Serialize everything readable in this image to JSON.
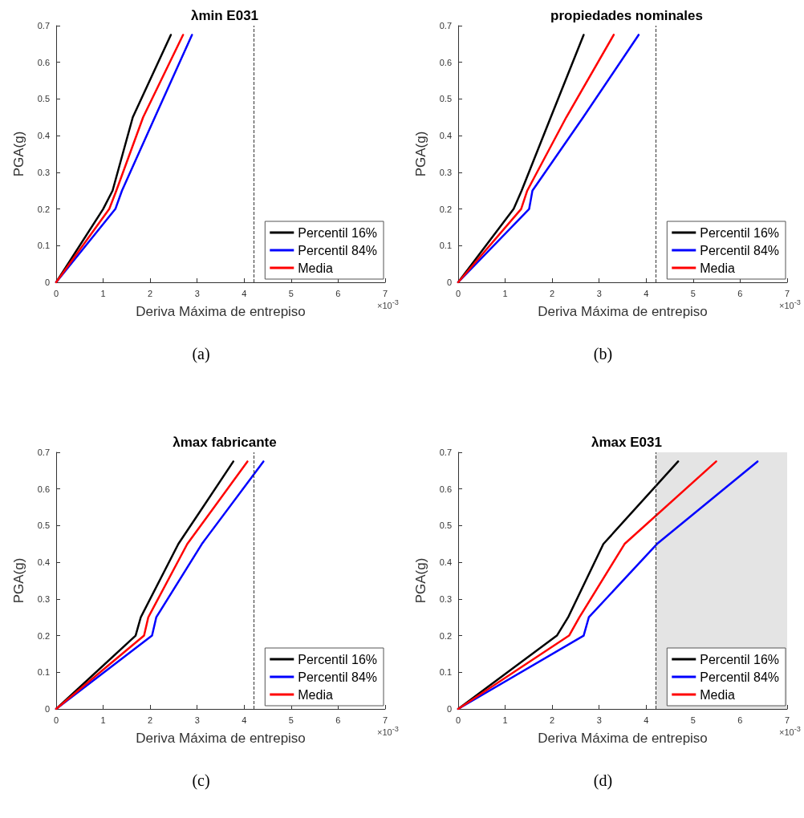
{
  "chart_data": [
    {
      "type": "line",
      "title": "λmin E031",
      "xlabel": "Deriva Máxima de entrepiso",
      "ylabel": "PGA(g)",
      "annotations": [
        "×10$^{-3}$",
        "(a)"
      ],
      "xlim": [
        0,
        7
      ],
      "xticks": [
        0,
        1,
        2,
        3,
        4,
        5,
        6,
        7
      ],
      "ylim": [
        0,
        0.7
      ],
      "yticks": [
        0,
        0.1,
        0.2,
        0.3,
        0.4,
        0.5,
        0.6,
        0.7
      ],
      "grid": false,
      "legend": "bottom right",
      "marker": "none",
      "line_style": "solid",
      "ref_lines": [
        {
          "axis": "x",
          "value": 4.2,
          "color": "#333333",
          "line_style": "dashed"
        }
      ],
      "series": [
        {
          "name": "Percentil 16%",
          "color": "#000000",
          "x": [
            0,
            1.0,
            1.2,
            1.63,
            2.44
          ],
          "values": [
            0,
            0.2,
            0.25,
            0.45,
            0.675
          ]
        },
        {
          "name": "Percentil 84%",
          "color": "#0000ff",
          "x": [
            0,
            1.26,
            1.4,
            2.1,
            2.89
          ],
          "values": [
            0,
            0.2,
            0.25,
            0.45,
            0.675
          ]
        },
        {
          "name": "Media",
          "color": "#ff0000",
          "x": [
            0,
            1.13,
            1.28,
            1.85,
            2.7
          ],
          "values": [
            0,
            0.2,
            0.25,
            0.45,
            0.675
          ]
        }
      ]
    },
    {
      "type": "line",
      "title": "propiedades nominales",
      "xlabel": "Deriva Máxima de entrepiso",
      "ylabel": "PGA(g)",
      "annotations": [
        "×10$^{-3}$",
        "(b)"
      ],
      "xlim": [
        0,
        7
      ],
      "xticks": [
        0,
        1,
        2,
        3,
        4,
        5,
        6,
        7
      ],
      "ylim": [
        0,
        0.7
      ],
      "yticks": [
        0,
        0.1,
        0.2,
        0.3,
        0.4,
        0.5,
        0.6,
        0.7
      ],
      "grid": false,
      "legend": "bottom right",
      "marker": "none",
      "line_style": "solid",
      "ref_lines": [
        {
          "axis": "x",
          "value": 4.2,
          "color": "#333333",
          "line_style": "dashed"
        }
      ],
      "series": [
        {
          "name": "Percentil 16%",
          "color": "#000000",
          "x": [
            0,
            1.18,
            1.35,
            1.97,
            2.67
          ],
          "values": [
            0,
            0.2,
            0.25,
            0.45,
            0.675
          ]
        },
        {
          "name": "Percentil 84%",
          "color": "#0000ff",
          "x": [
            0,
            1.51,
            1.58,
            2.66,
            3.84
          ],
          "values": [
            0,
            0.2,
            0.25,
            0.45,
            0.675
          ]
        },
        {
          "name": "Media",
          "color": "#ff0000",
          "x": [
            0,
            1.34,
            1.47,
            2.3,
            3.31
          ],
          "values": [
            0,
            0.2,
            0.25,
            0.45,
            0.675
          ]
        }
      ]
    },
    {
      "type": "line",
      "title": "λmax fabricante",
      "xlabel": "Deriva Máxima de entrepiso",
      "ylabel": "PGA(g)",
      "annotations": [
        "×10$^{-3}$",
        "(c)"
      ],
      "xlim": [
        0,
        7
      ],
      "xticks": [
        0,
        1,
        2,
        3,
        4,
        5,
        6,
        7
      ],
      "ylim": [
        0,
        0.7
      ],
      "yticks": [
        0,
        0.1,
        0.2,
        0.3,
        0.4,
        0.5,
        0.6,
        0.7
      ],
      "grid": false,
      "legend": "bottom right",
      "marker": "none",
      "line_style": "solid",
      "ref_lines": [
        {
          "axis": "x",
          "value": 4.2,
          "color": "#333333",
          "line_style": "dashed"
        }
      ],
      "series": [
        {
          "name": "Percentil 16%",
          "color": "#000000",
          "x": [
            0,
            1.69,
            1.8,
            2.6,
            3.77
          ],
          "values": [
            0,
            0.2,
            0.25,
            0.45,
            0.675
          ]
        },
        {
          "name": "Percentil 84%",
          "color": "#0000ff",
          "x": [
            0,
            2.04,
            2.13,
            3.1,
            4.41
          ],
          "values": [
            0,
            0.2,
            0.25,
            0.45,
            0.675
          ]
        },
        {
          "name": "Media",
          "color": "#ff0000",
          "x": [
            0,
            1.87,
            1.96,
            2.79,
            4.07
          ],
          "values": [
            0,
            0.2,
            0.25,
            0.45,
            0.675
          ]
        }
      ]
    },
    {
      "type": "line",
      "title": "λmax E031",
      "xlabel": "Deriva Máxima de entrepiso",
      "ylabel": "PGA(g)",
      "annotations": [
        "×10$^{-3}$",
        "(d)"
      ],
      "xlim": [
        0,
        7
      ],
      "xticks": [
        0,
        1,
        2,
        3,
        4,
        5,
        6,
        7
      ],
      "ylim": [
        0,
        0.7
      ],
      "yticks": [
        0,
        0.1,
        0.2,
        0.3,
        0.4,
        0.5,
        0.6,
        0.7
      ],
      "grid": false,
      "legend": "bottom right",
      "marker": "none",
      "line_style": "solid",
      "ref_lines": [
        {
          "axis": "x",
          "value": 4.2,
          "color": "#333333",
          "line_style": "dashed"
        }
      ],
      "bands": [
        {
          "axis": "x",
          "from": 4.2,
          "to": 7,
          "color": "#e4e4e4"
        }
      ],
      "series": [
        {
          "name": "Percentil 16%",
          "color": "#000000",
          "x": [
            0,
            2.1,
            2.34,
            3.09,
            4.68
          ],
          "values": [
            0,
            0.2,
            0.25,
            0.45,
            0.675
          ]
        },
        {
          "name": "Percentil 84%",
          "color": "#0000ff",
          "x": [
            0,
            2.67,
            2.78,
            4.23,
            6.37
          ],
          "values": [
            0,
            0.2,
            0.25,
            0.45,
            0.675
          ]
        },
        {
          "name": "Media",
          "color": "#ff0000",
          "x": [
            0,
            2.36,
            2.58,
            3.54,
            5.49
          ],
          "values": [
            0,
            0.2,
            0.25,
            0.45,
            0.675
          ]
        }
      ]
    }
  ]
}
